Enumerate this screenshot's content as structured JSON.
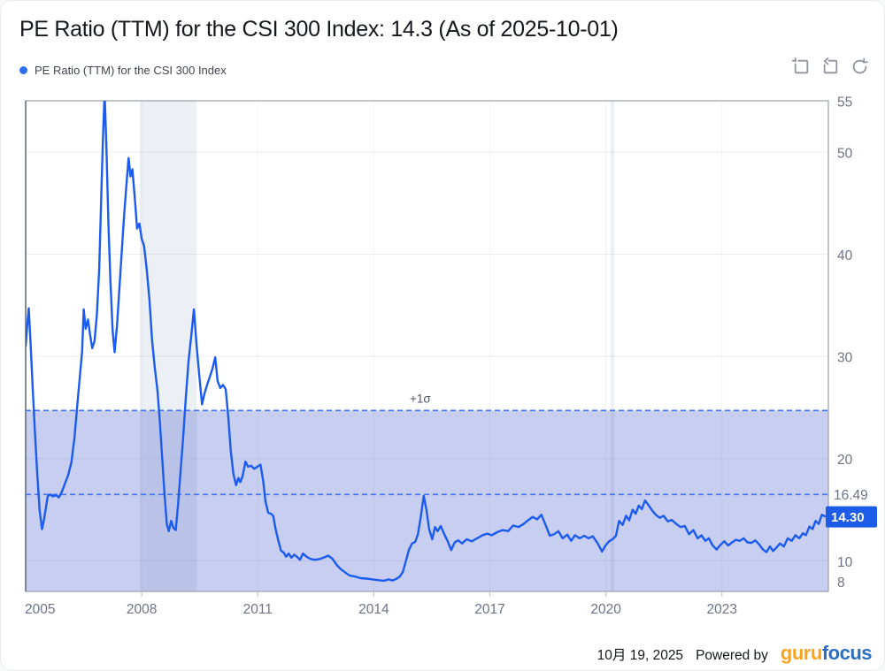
{
  "header": {
    "title": "PE Ratio (TTM) for the CSI 300 Index: 14.3 (As of 2025-10-01)"
  },
  "legend": {
    "label": "PE Ratio (TTM) for the CSI 300 Index",
    "dot_color": "#2f6ef2"
  },
  "toolbar": {
    "icons": [
      "annotate-crop-icon",
      "undo-box-icon",
      "refresh-icon"
    ],
    "icon_color": "#8f949e"
  },
  "footer": {
    "date": "10月 19, 2025",
    "powered_by": "Powered by",
    "logo_guru": "guru",
    "logo_focus": "focus",
    "logo_guru_color": "#f7a520",
    "logo_focus_color": "#2b6dbf"
  },
  "chart_data": {
    "type": "line",
    "title": "PE Ratio (TTM) for the CSI 300 Index",
    "x_axis": {
      "range": [
        2005,
        2025.75
      ],
      "ticks": [
        2005,
        2008,
        2011,
        2014,
        2017,
        2020,
        2023
      ]
    },
    "y_axis": {
      "range": [
        7,
        55
      ],
      "ticks": [
        55,
        50,
        40,
        30,
        20,
        10,
        8
      ],
      "gridlines": [
        50,
        40,
        30,
        20,
        10
      ]
    },
    "mean_line": {
      "value": 16.49,
      "label": "16.49"
    },
    "sigma_line": {
      "value": 24.7,
      "label": "+1σ",
      "label_x": 2015.2
    },
    "band": {
      "top": 24.7,
      "bottom": 7
    },
    "recession_bands": [
      [
        2007.95,
        2009.42
      ],
      [
        2020.12,
        2020.22
      ]
    ],
    "last_value": {
      "value": 14.3,
      "label": "14.30"
    },
    "colors": {
      "line": "#1b5bee",
      "dashed": "#3f74f2",
      "band": "rgba(90,111,208,0.34)",
      "recession": "rgba(144,162,184,0.17)",
      "grid": "rgba(96,106,128,0.12)",
      "vgrid": "rgba(96,106,128,0.08)",
      "border": "#9aa0ab",
      "tick_text": "#6c7389",
      "axis_tick": "#c2c7d0",
      "tag_bg": "#1d5ce6",
      "tag_text": "#ffffff",
      "sigma_text": "#4d5666"
    },
    "series": [
      {
        "name": "PE Ratio (TTM) for the CSI 300 Index",
        "color": "#1b5bee",
        "points": [
          [
            2005.0,
            31.0
          ],
          [
            2005.04,
            33.0
          ],
          [
            2005.08,
            34.7
          ],
          [
            2005.13,
            31.0
          ],
          [
            2005.18,
            27.0
          ],
          [
            2005.24,
            22.5
          ],
          [
            2005.3,
            18.5
          ],
          [
            2005.36,
            15.0
          ],
          [
            2005.42,
            13.1
          ],
          [
            2005.47,
            13.9
          ],
          [
            2005.52,
            15.1
          ],
          [
            2005.57,
            16.3
          ],
          [
            2005.63,
            16.5
          ],
          [
            2005.7,
            16.3
          ],
          [
            2005.78,
            16.4
          ],
          [
            2005.86,
            16.2
          ],
          [
            2005.94,
            16.8
          ],
          [
            2006.02,
            17.6
          ],
          [
            2006.1,
            18.4
          ],
          [
            2006.18,
            19.6
          ],
          [
            2006.26,
            22.0
          ],
          [
            2006.33,
            25.0
          ],
          [
            2006.4,
            28.0
          ],
          [
            2006.46,
            30.5
          ],
          [
            2006.5,
            34.6
          ],
          [
            2006.55,
            32.7
          ],
          [
            2006.61,
            33.6
          ],
          [
            2006.67,
            32.0
          ],
          [
            2006.72,
            30.8
          ],
          [
            2006.78,
            31.5
          ],
          [
            2006.84,
            34.0
          ],
          [
            2006.9,
            38.5
          ],
          [
            2006.95,
            45.0
          ],
          [
            2007.0,
            51.5
          ],
          [
            2007.04,
            55.8
          ],
          [
            2007.09,
            50.0
          ],
          [
            2007.14,
            43.0
          ],
          [
            2007.19,
            37.5
          ],
          [
            2007.25,
            32.5
          ],
          [
            2007.3,
            30.4
          ],
          [
            2007.36,
            33.0
          ],
          [
            2007.42,
            36.5
          ],
          [
            2007.48,
            40.0
          ],
          [
            2007.54,
            43.5
          ],
          [
            2007.6,
            46.5
          ],
          [
            2007.66,
            49.4
          ],
          [
            2007.71,
            47.6
          ],
          [
            2007.76,
            48.3
          ],
          [
            2007.82,
            45.5
          ],
          [
            2007.88,
            42.5
          ],
          [
            2007.94,
            43.0
          ],
          [
            2008.0,
            41.5
          ],
          [
            2008.06,
            40.8
          ],
          [
            2008.13,
            38.5
          ],
          [
            2008.2,
            35.5
          ],
          [
            2008.27,
            31.5
          ],
          [
            2008.34,
            28.8
          ],
          [
            2008.41,
            26.5
          ],
          [
            2008.47,
            23.5
          ],
          [
            2008.53,
            20.0
          ],
          [
            2008.59,
            16.5
          ],
          [
            2008.65,
            13.6
          ],
          [
            2008.7,
            12.9
          ],
          [
            2008.76,
            13.9
          ],
          [
            2008.82,
            13.2
          ],
          [
            2008.88,
            13.0
          ],
          [
            2008.94,
            15.5
          ],
          [
            2009.0,
            18.5
          ],
          [
            2009.07,
            22.0
          ],
          [
            2009.14,
            26.0
          ],
          [
            2009.21,
            29.5
          ],
          [
            2009.28,
            32.0
          ],
          [
            2009.35,
            34.6
          ],
          [
            2009.42,
            31.0
          ],
          [
            2009.49,
            28.0
          ],
          [
            2009.56,
            25.3
          ],
          [
            2009.62,
            26.3
          ],
          [
            2009.69,
            27.2
          ],
          [
            2009.76,
            28.0
          ],
          [
            2009.83,
            28.8
          ],
          [
            2009.9,
            29.9
          ],
          [
            2009.96,
            27.6
          ],
          [
            2010.03,
            26.9
          ],
          [
            2010.1,
            27.2
          ],
          [
            2010.17,
            26.8
          ],
          [
            2010.24,
            24.0
          ],
          [
            2010.3,
            20.8
          ],
          [
            2010.37,
            18.5
          ],
          [
            2010.44,
            17.4
          ],
          [
            2010.5,
            18.1
          ],
          [
            2010.55,
            17.7
          ],
          [
            2010.61,
            18.3
          ],
          [
            2010.68,
            19.7
          ],
          [
            2010.75,
            19.2
          ],
          [
            2010.83,
            19.3
          ],
          [
            2010.91,
            19.0
          ],
          [
            2010.99,
            19.2
          ],
          [
            2011.07,
            19.4
          ],
          [
            2011.14,
            17.8
          ],
          [
            2011.2,
            15.8
          ],
          [
            2011.27,
            14.7
          ],
          [
            2011.34,
            14.6
          ],
          [
            2011.4,
            14.4
          ],
          [
            2011.46,
            13.1
          ],
          [
            2011.53,
            12.0
          ],
          [
            2011.6,
            11.0
          ],
          [
            2011.67,
            10.8
          ],
          [
            2011.73,
            10.4
          ],
          [
            2011.8,
            10.7
          ],
          [
            2011.87,
            10.3
          ],
          [
            2011.94,
            10.6
          ],
          [
            2012.01,
            10.4
          ],
          [
            2012.09,
            10.1
          ],
          [
            2012.17,
            10.7
          ],
          [
            2012.26,
            10.4
          ],
          [
            2012.35,
            10.2
          ],
          [
            2012.46,
            10.1
          ],
          [
            2012.58,
            10.15
          ],
          [
            2012.7,
            10.3
          ],
          [
            2012.82,
            10.5
          ],
          [
            2012.93,
            10.2
          ],
          [
            2013.04,
            9.6
          ],
          [
            2013.14,
            9.2
          ],
          [
            2013.26,
            8.85
          ],
          [
            2013.38,
            8.55
          ],
          [
            2013.52,
            8.45
          ],
          [
            2013.66,
            8.3
          ],
          [
            2013.82,
            8.25
          ],
          [
            2013.97,
            8.18
          ],
          [
            2014.12,
            8.1
          ],
          [
            2014.27,
            8.05
          ],
          [
            2014.38,
            8.18
          ],
          [
            2014.48,
            8.07
          ],
          [
            2014.58,
            8.22
          ],
          [
            2014.67,
            8.45
          ],
          [
            2014.75,
            8.9
          ],
          [
            2014.83,
            10.0
          ],
          [
            2014.91,
            11.1
          ],
          [
            2014.99,
            11.7
          ],
          [
            2015.07,
            11.85
          ],
          [
            2015.14,
            12.6
          ],
          [
            2015.21,
            14.2
          ],
          [
            2015.29,
            16.35
          ],
          [
            2015.36,
            15.0
          ],
          [
            2015.43,
            13.1
          ],
          [
            2015.51,
            12.1
          ],
          [
            2015.58,
            13.3
          ],
          [
            2015.65,
            12.9
          ],
          [
            2015.73,
            13.4
          ],
          [
            2015.82,
            12.6
          ],
          [
            2015.91,
            11.9
          ],
          [
            2016.0,
            11.05
          ],
          [
            2016.09,
            11.8
          ],
          [
            2016.18,
            12.0
          ],
          [
            2016.28,
            11.7
          ],
          [
            2016.4,
            12.1
          ],
          [
            2016.53,
            11.9
          ],
          [
            2016.67,
            12.2
          ],
          [
            2016.81,
            12.5
          ],
          [
            2016.93,
            12.65
          ],
          [
            2017.05,
            12.5
          ],
          [
            2017.19,
            12.8
          ],
          [
            2017.33,
            13.0
          ],
          [
            2017.47,
            12.9
          ],
          [
            2017.6,
            13.45
          ],
          [
            2017.74,
            13.3
          ],
          [
            2017.87,
            13.6
          ],
          [
            2018.0,
            14.0
          ],
          [
            2018.11,
            14.3
          ],
          [
            2018.22,
            14.05
          ],
          [
            2018.33,
            14.5
          ],
          [
            2018.44,
            13.5
          ],
          [
            2018.55,
            12.45
          ],
          [
            2018.66,
            12.6
          ],
          [
            2018.77,
            12.9
          ],
          [
            2018.88,
            12.2
          ],
          [
            2019.0,
            12.55
          ],
          [
            2019.1,
            11.95
          ],
          [
            2019.2,
            12.5
          ],
          [
            2019.32,
            12.2
          ],
          [
            2019.44,
            12.45
          ],
          [
            2019.55,
            12.2
          ],
          [
            2019.66,
            12.4
          ],
          [
            2019.78,
            11.75
          ],
          [
            2019.9,
            10.9
          ],
          [
            2019.99,
            11.5
          ],
          [
            2020.08,
            11.9
          ],
          [
            2020.17,
            12.1
          ],
          [
            2020.26,
            12.45
          ],
          [
            2020.34,
            13.9
          ],
          [
            2020.43,
            13.5
          ],
          [
            2020.52,
            14.4
          ],
          [
            2020.6,
            13.95
          ],
          [
            2020.69,
            15.0
          ],
          [
            2020.77,
            14.6
          ],
          [
            2020.85,
            15.4
          ],
          [
            2020.93,
            15.05
          ],
          [
            2021.01,
            15.9
          ],
          [
            2021.09,
            15.5
          ],
          [
            2021.19,
            14.95
          ],
          [
            2021.29,
            14.5
          ],
          [
            2021.39,
            14.2
          ],
          [
            2021.49,
            14.4
          ],
          [
            2021.6,
            13.85
          ],
          [
            2021.7,
            14.0
          ],
          [
            2021.82,
            13.6
          ],
          [
            2021.93,
            13.3
          ],
          [
            2022.04,
            13.4
          ],
          [
            2022.15,
            12.6
          ],
          [
            2022.26,
            13.0
          ],
          [
            2022.37,
            12.2
          ],
          [
            2022.47,
            12.5
          ],
          [
            2022.57,
            11.95
          ],
          [
            2022.66,
            12.2
          ],
          [
            2022.76,
            11.5
          ],
          [
            2022.86,
            11.1
          ],
          [
            2022.96,
            11.55
          ],
          [
            2023.06,
            11.9
          ],
          [
            2023.16,
            11.5
          ],
          [
            2023.26,
            11.8
          ],
          [
            2023.36,
            12.05
          ],
          [
            2023.46,
            11.95
          ],
          [
            2023.56,
            12.2
          ],
          [
            2023.66,
            11.8
          ],
          [
            2023.76,
            11.75
          ],
          [
            2023.86,
            12.0
          ],
          [
            2023.96,
            11.6
          ],
          [
            2024.06,
            11.1
          ],
          [
            2024.15,
            10.85
          ],
          [
            2024.24,
            11.4
          ],
          [
            2024.32,
            10.95
          ],
          [
            2024.41,
            11.3
          ],
          [
            2024.5,
            11.7
          ],
          [
            2024.6,
            11.4
          ],
          [
            2024.7,
            12.2
          ],
          [
            2024.8,
            11.95
          ],
          [
            2024.9,
            12.5
          ],
          [
            2025.0,
            12.2
          ],
          [
            2025.09,
            12.7
          ],
          [
            2025.17,
            12.5
          ],
          [
            2025.26,
            13.35
          ],
          [
            2025.34,
            13.1
          ],
          [
            2025.42,
            13.9
          ],
          [
            2025.5,
            13.6
          ],
          [
            2025.58,
            14.5
          ],
          [
            2025.66,
            14.35
          ],
          [
            2025.75,
            14.3
          ]
        ]
      }
    ]
  }
}
